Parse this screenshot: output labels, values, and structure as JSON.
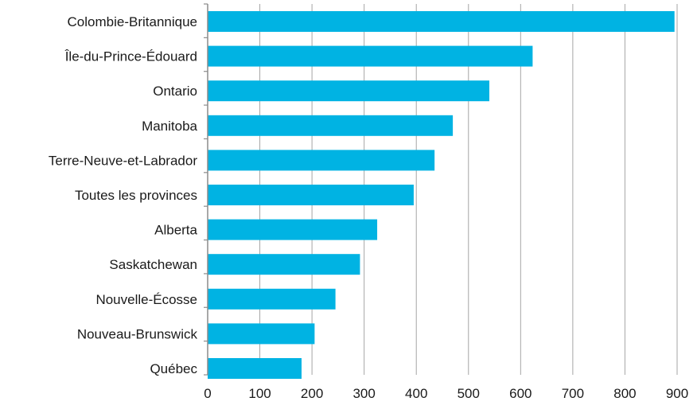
{
  "chart_data": {
    "type": "bar",
    "orientation": "horizontal",
    "categories": [
      "Colombie-Britannique",
      "Île-du-Prince-Édouard",
      "Ontario",
      "Manitoba",
      "Terre-Neuve-et-Labrador",
      "Toutes les provinces",
      "Alberta",
      "Saskatchewan",
      "Nouvelle-Écosse",
      "Nouveau-Brunswick",
      "Québec"
    ],
    "values": [
      895,
      623,
      540,
      470,
      435,
      395,
      325,
      292,
      245,
      205,
      180
    ],
    "xlim": [
      0,
      900
    ],
    "xticks": [
      "0",
      "100",
      "200",
      "300",
      "400",
      "500",
      "600",
      "700",
      "800",
      "900"
    ],
    "title": "",
    "xlabel": "",
    "ylabel": "",
    "grid": "vertical",
    "legend": "none",
    "bar_color": "#00b3e3",
    "grid_color": "#a6a6a6",
    "axis_color": "#8c8c8c"
  }
}
